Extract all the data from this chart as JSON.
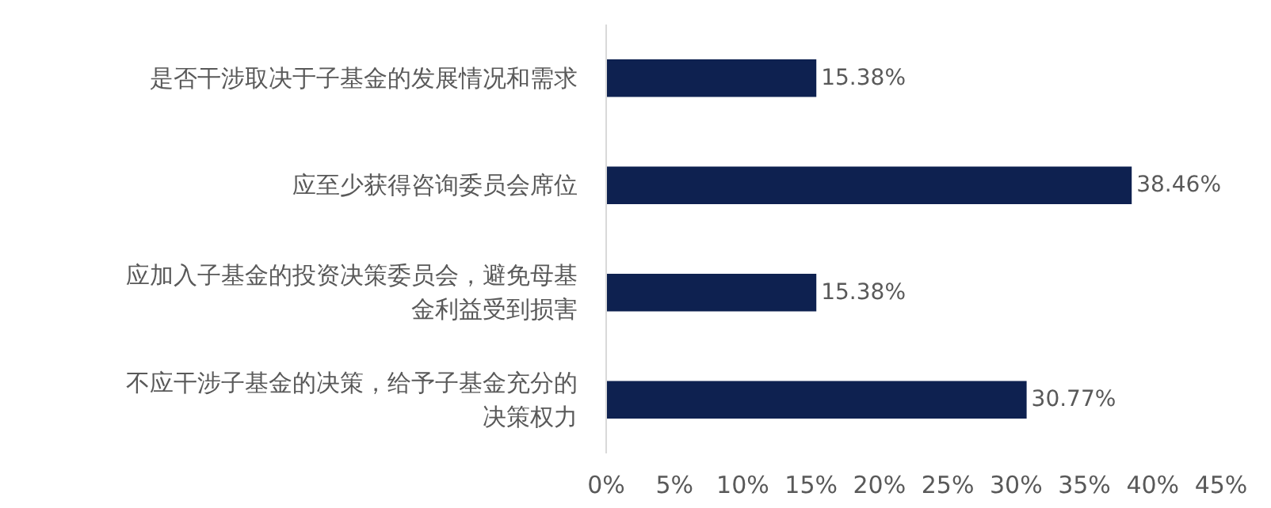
{
  "chart_data": {
    "type": "bar",
    "orientation": "horizontal",
    "categories": [
      "是否干涉取决于子基金的发展情况和需求",
      "应至少获得咨询委员会席位",
      "应加入子基金的投资决策委员会，避免母基金利益受到损害",
      "不应干涉子基金的决策，给予子基金充分的决策权力"
    ],
    "values": [
      15.38,
      38.46,
      15.38,
      30.77
    ],
    "color": "#0e2150",
    "value_labels": [
      "15.38%",
      "38.46%",
      "15.38%",
      "30.77%"
    ],
    "xlim": [
      0,
      45
    ],
    "xticks": [
      {
        "value": 0,
        "label": "0%"
      },
      {
        "value": 5,
        "label": "5%"
      },
      {
        "value": 10,
        "label": "10%"
      },
      {
        "value": 15,
        "label": "15%"
      },
      {
        "value": 20,
        "label": "20%"
      },
      {
        "value": 25,
        "label": "25%"
      },
      {
        "value": 30,
        "label": "30%"
      },
      {
        "value": 35,
        "label": "35%"
      },
      {
        "value": 40,
        "label": "40%"
      },
      {
        "value": 45,
        "label": "45%"
      }
    ],
    "grid": false
  }
}
